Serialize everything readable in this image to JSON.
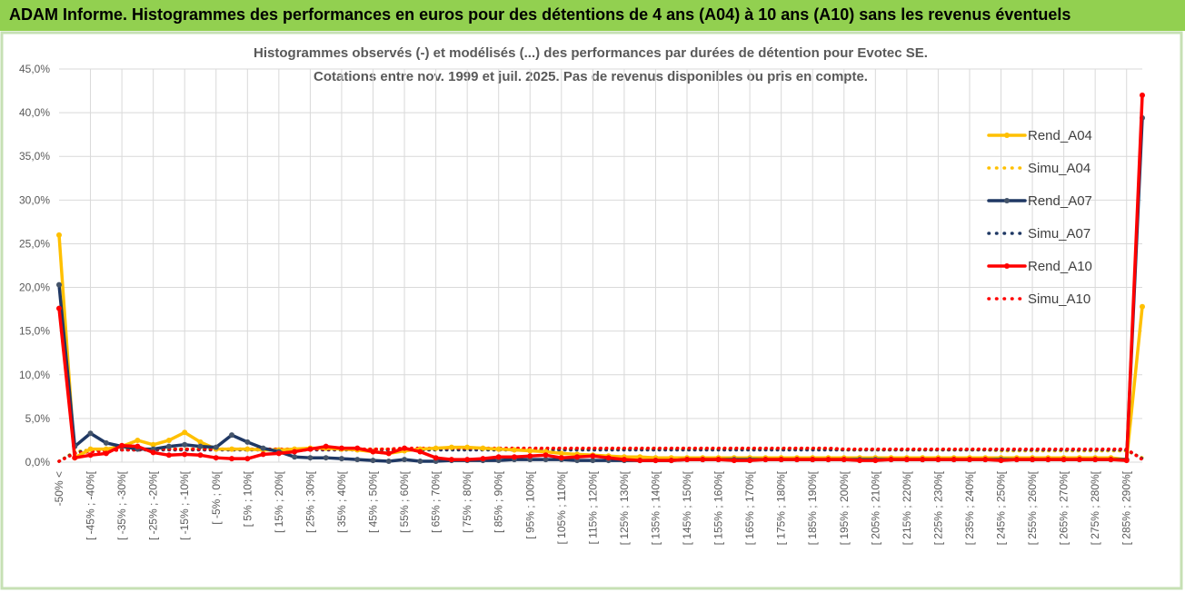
{
  "header": {
    "title": "ADAM Informe. Histogrammes des performances en euros pour des détentions de 4 ans (A04) à 10 ans (A10) sans les revenus éventuels"
  },
  "chart_data": {
    "type": "line",
    "title": "Histogrammes observés (-) et modélisés (...) des performances par durées de détention pour Evotec SE.",
    "subtitle": "Cotations entre nov. 1999 et juil. 2025. Pas de revenus disponibles ou pris en compte.",
    "categories": [
      "-50% <",
      null,
      "[ -45% ; -40%[",
      null,
      "[ -35% ; -30%[",
      null,
      "[ -25% ; -20%[",
      null,
      "[ -15% ; -10%[",
      null,
      "[ -5% ; 0%[",
      null,
      "[ 5% ; 10%[",
      null,
      "[ 15% ; 20%[",
      null,
      "[ 25% ; 30%[",
      null,
      "[ 35% ; 40%[",
      null,
      "[ 45% ; 50%[",
      null,
      "[ 55% ; 60%[",
      null,
      "[ 65% ; 70%[",
      null,
      "[ 75% ; 80%[",
      null,
      "[ 85% ; 90%[",
      null,
      "[ 95% ; 100%[",
      null,
      "[ 105% ; 110%[",
      null,
      "[ 115% ; 120%[",
      null,
      "[ 125% ; 130%[",
      null,
      "[ 135% ; 140%[",
      null,
      "[ 145% ; 150%[",
      null,
      "[ 155% ; 160%[",
      null,
      "[ 165% ; 170%[",
      null,
      "[ 175% ; 180%[",
      null,
      "[ 185% ; 190%[",
      null,
      "[ 195% ; 200%[",
      null,
      "[ 205% ; 210%[",
      null,
      "[ 215% ; 220%[",
      null,
      "[ 225% ; 230%[",
      null,
      "[ 235% ; 240%[",
      null,
      "[ 245% ; 250%[",
      null,
      "[ 255% ; 260%[",
      null,
      "[ 265% ; 270%[",
      null,
      "[ 275% ; 280%[",
      null,
      "[ 285% ; 290%[",
      null
    ],
    "series": [
      {
        "name": "Simu_A04",
        "color": "#ffc000",
        "style": "dotted",
        "values": [
          0.1,
          1.2,
          1.4,
          1.5,
          1.5,
          1.5,
          1.5,
          1.5,
          1.5,
          1.5,
          1.5,
          1.5,
          1.5,
          1.5,
          1.5,
          1.5,
          1.5,
          1.5,
          1.5,
          1.5,
          1.5,
          1.5,
          1.5,
          1.5,
          1.5,
          1.5,
          1.5,
          1.5,
          1.5,
          1.5,
          1.5,
          1.5,
          1.5,
          1.5,
          1.5,
          1.5,
          1.5,
          1.5,
          1.5,
          1.5,
          1.5,
          1.5,
          1.5,
          1.5,
          1.5,
          1.5,
          1.5,
          1.5,
          1.5,
          1.5,
          1.4,
          1.4,
          1.4,
          1.4,
          1.4,
          1.4,
          1.4,
          1.4,
          1.4,
          1.4,
          1.3,
          1.3,
          1.3,
          1.3,
          1.3,
          1.3,
          1.3,
          1.3,
          1.3,
          0.5
        ]
      },
      {
        "name": "Simu_A07",
        "color": "#1f3864",
        "style": "dotted",
        "values": [
          0.1,
          1.1,
          1.3,
          1.4,
          1.4,
          1.4,
          1.4,
          1.4,
          1.4,
          1.4,
          1.4,
          1.4,
          1.4,
          1.4,
          1.4,
          1.4,
          1.4,
          1.4,
          1.4,
          1.4,
          1.4,
          1.4,
          1.4,
          1.4,
          1.4,
          1.4,
          1.4,
          1.4,
          1.4,
          1.4,
          1.4,
          1.4,
          1.4,
          1.4,
          1.4,
          1.4,
          1.4,
          1.4,
          1.4,
          1.4,
          1.4,
          1.4,
          1.4,
          1.4,
          1.4,
          1.4,
          1.4,
          1.4,
          1.4,
          1.4,
          1.4,
          1.4,
          1.4,
          1.4,
          1.4,
          1.4,
          1.4,
          1.4,
          1.4,
          1.4,
          1.4,
          1.4,
          1.4,
          1.4,
          1.4,
          1.4,
          1.4,
          1.4,
          1.4,
          0.4
        ]
      },
      {
        "name": "Simu_A10",
        "color": "#ff0000",
        "style": "dotted",
        "values": [
          0.1,
          1.0,
          1.2,
          1.3,
          1.4,
          1.4,
          1.5,
          1.5,
          1.5,
          1.5,
          1.5,
          1.5,
          1.5,
          1.5,
          1.5,
          1.5,
          1.5,
          1.5,
          1.5,
          1.5,
          1.5,
          1.5,
          1.6,
          1.6,
          1.6,
          1.6,
          1.6,
          1.6,
          1.6,
          1.6,
          1.6,
          1.6,
          1.6,
          1.6,
          1.6,
          1.6,
          1.6,
          1.6,
          1.6,
          1.6,
          1.6,
          1.6,
          1.6,
          1.6,
          1.6,
          1.6,
          1.6,
          1.6,
          1.6,
          1.6,
          1.5,
          1.5,
          1.5,
          1.5,
          1.5,
          1.5,
          1.5,
          1.5,
          1.5,
          1.5,
          1.5,
          1.5,
          1.5,
          1.5,
          1.5,
          1.5,
          1.5,
          1.5,
          1.5,
          0.3
        ]
      },
      {
        "name": "Rend_A04",
        "color": "#ffc000",
        "style": "solid",
        "values": [
          26,
          0.5,
          1.5,
          1.5,
          1.8,
          2.5,
          2.0,
          2.5,
          3.4,
          2.3,
          1.5,
          1.5,
          1.5,
          1.4,
          1.4,
          1.5,
          1.6,
          1.6,
          1.5,
          1.4,
          1.2,
          1.0,
          1.3,
          1.5,
          1.6,
          1.7,
          1.7,
          1.6,
          1.5,
          1.4,
          1.3,
          1.2,
          1.0,
          0.9,
          0.8,
          0.7,
          0.6,
          0.6,
          0.5,
          0.5,
          0.5,
          0.5,
          0.5,
          0.5,
          0.5,
          0.5,
          0.5,
          0.5,
          0.5,
          0.5,
          0.5,
          0.5,
          0.5,
          0.5,
          0.5,
          0.5,
          0.5,
          0.5,
          0.5,
          0.5,
          0.5,
          0.5,
          0.5,
          0.5,
          0.5,
          0.5,
          0.5,
          0.5,
          0.3,
          17.8
        ]
      },
      {
        "name": "Rend_A07",
        "color": "#1f3864",
        "style": "solid",
        "values": [
          20.3,
          1.8,
          3.3,
          2.2,
          1.8,
          1.5,
          1.5,
          1.8,
          2.0,
          1.8,
          1.7,
          3.1,
          2.3,
          1.6,
          1.2,
          0.6,
          0.5,
          0.5,
          0.4,
          0.3,
          0.2,
          0.1,
          0.3,
          0.1,
          0.1,
          0.2,
          0.2,
          0.2,
          0.2,
          0.3,
          0.3,
          0.3,
          0.3,
          0.2,
          0.2,
          0.2,
          0.2,
          0.2,
          0.2,
          0.2,
          0.3,
          0.3,
          0.3,
          0.3,
          0.3,
          0.3,
          0.3,
          0.3,
          0.3,
          0.3,
          0.3,
          0.3,
          0.3,
          0.3,
          0.3,
          0.3,
          0.3,
          0.3,
          0.3,
          0.3,
          0.3,
          0.3,
          0.3,
          0.3,
          0.3,
          0.3,
          0.3,
          0.3,
          0.3,
          39.4
        ]
      },
      {
        "name": "Rend_A10",
        "color": "#ff0000",
        "style": "solid",
        "values": [
          17.6,
          0.5,
          0.8,
          1.0,
          1.9,
          1.8,
          1.1,
          0.8,
          0.9,
          0.8,
          0.5,
          0.4,
          0.4,
          0.9,
          1.0,
          1.2,
          1.5,
          1.8,
          1.6,
          1.6,
          1.2,
          1.0,
          1.6,
          1.2,
          0.5,
          0.3,
          0.3,
          0.4,
          0.6,
          0.6,
          0.7,
          0.8,
          0.5,
          0.6,
          0.7,
          0.5,
          0.3,
          0.2,
          0.2,
          0.2,
          0.3,
          0.3,
          0.3,
          0.2,
          0.2,
          0.3,
          0.3,
          0.3,
          0.3,
          0.3,
          0.3,
          0.2,
          0.2,
          0.3,
          0.3,
          0.3,
          0.3,
          0.3,
          0.3,
          0.3,
          0.2,
          0.3,
          0.3,
          0.3,
          0.3,
          0.3,
          0.3,
          0.3,
          0.2,
          42.0
        ]
      }
    ],
    "legend_order": [
      3,
      0,
      4,
      1,
      5,
      2
    ],
    "ylim": [
      0,
      45
    ],
    "yticks": [
      {
        "value": 0,
        "label": "0,0%"
      },
      {
        "value": 5,
        "label": "5,0%"
      },
      {
        "value": 10,
        "label": "10,0%"
      },
      {
        "value": 15,
        "label": "15,0%"
      },
      {
        "value": 20,
        "label": "20,0%"
      },
      {
        "value": 25,
        "label": "25,0%"
      },
      {
        "value": 30,
        "label": "30,0%"
      },
      {
        "value": 35,
        "label": "35,0%"
      },
      {
        "value": 40,
        "label": "40,0%"
      },
      {
        "value": 45,
        "label": "45,0%"
      }
    ],
    "grid": true
  }
}
